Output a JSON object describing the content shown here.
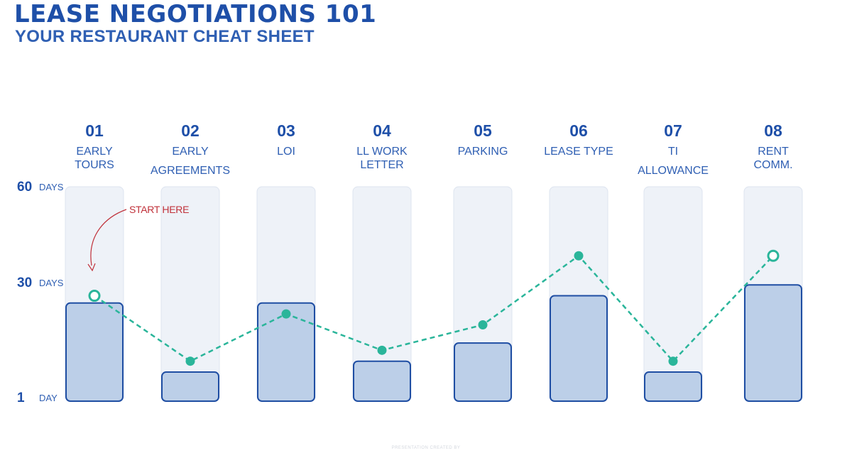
{
  "header": {
    "title": "LEASE NEGOTIATIONS 101",
    "subtitle": "YOUR RESTAURANT CHEAT SHEET"
  },
  "annotation": {
    "text": "START HERE"
  },
  "footer": {
    "text": "PRESENTATION CREATED BY"
  },
  "colors": {
    "title": "#1e4fa8",
    "track": "#eef2f8",
    "bar_fill": "#bccfe8",
    "bar_stroke": "#1f4ea3",
    "line": "#2ab59a",
    "annotation": "#c0313a"
  },
  "chart_data": {
    "type": "bar",
    "title": "",
    "xlabel": "",
    "ylabel": "",
    "categories": [
      {
        "number": "01",
        "label": [
          "EARLY",
          "TOURS"
        ]
      },
      {
        "number": "02",
        "label": [
          "EARLY",
          "AGREEMENTS"
        ]
      },
      {
        "number": "03",
        "label": [
          "LOI"
        ]
      },
      {
        "number": "04",
        "label": [
          "LL WORK",
          "LETTER"
        ]
      },
      {
        "number": "05",
        "label": [
          "PARKING"
        ]
      },
      {
        "number": "06",
        "label": [
          "LEASE TYPE"
        ]
      },
      {
        "number": "07",
        "label": [
          "TI",
          "ALLOWANCE"
        ]
      },
      {
        "number": "08",
        "label": [
          "RENT",
          "COMM."
        ]
      }
    ],
    "y_ticks": [
      {
        "value": 60,
        "num": "60",
        "unit": "DAYS"
      },
      {
        "value": 30,
        "num": "30",
        "unit": "DAYS"
      },
      {
        "value": 1,
        "num": "1",
        "unit": "DAY"
      }
    ],
    "ylim": [
      1,
      60
    ],
    "series": [
      {
        "type": "bar",
        "values": [
          28,
          9,
          28,
          12,
          17,
          30,
          9,
          33
        ]
      },
      {
        "type": "line",
        "style": "dashed",
        "values": [
          30,
          12,
          25,
          15,
          22,
          41,
          12,
          41
        ],
        "hollow_points": [
          0,
          7
        ]
      }
    ],
    "grid": false,
    "legend": "none"
  }
}
